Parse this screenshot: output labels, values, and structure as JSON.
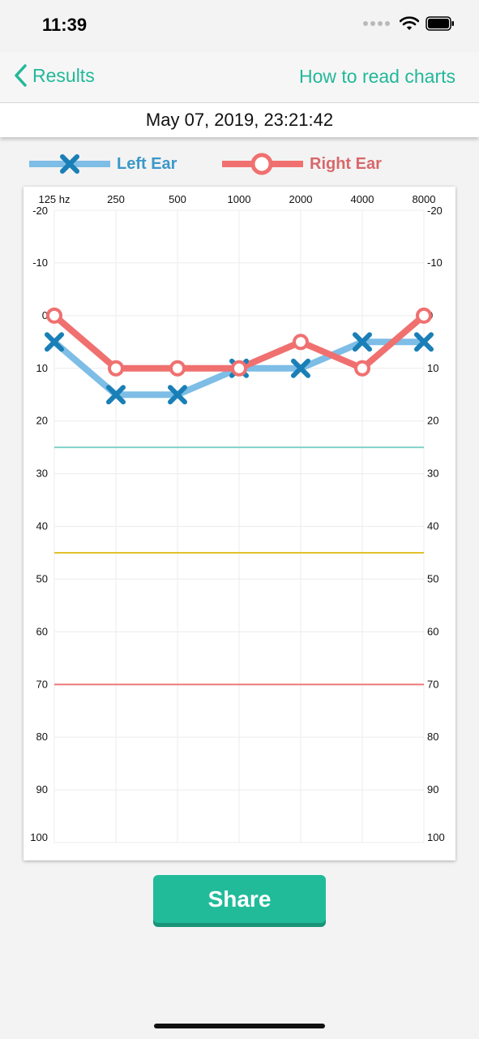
{
  "status": {
    "time": "11:39"
  },
  "nav": {
    "back_label": "Results",
    "help_label": "How to read charts"
  },
  "result": {
    "datetime": "May 07, 2019, 23:21:42"
  },
  "legend": [
    {
      "label": "Left Ear",
      "text_color": "#3a98c9"
    },
    {
      "label": "Right Ear",
      "text_color": "#d9676a"
    }
  ],
  "chart_data": {
    "type": "line",
    "categories": [
      "125 hz",
      "250",
      "500",
      "1000",
      "2000",
      "4000",
      "8000"
    ],
    "y_ticks": [
      -20,
      -10,
      0,
      10,
      20,
      30,
      40,
      50,
      60,
      70,
      80,
      90,
      100
    ],
    "ylim": [
      -20,
      100
    ],
    "y_inverted": true,
    "grid": true,
    "series": [
      {
        "name": "Left Ear",
        "values": [
          5,
          15,
          15,
          10,
          10,
          5,
          5
        ],
        "line_color": "#7dbde6",
        "marker": "x",
        "marker_color": "#1a7fb7"
      },
      {
        "name": "Right Ear",
        "values": [
          0,
          10,
          10,
          10,
          5,
          10,
          0
        ],
        "line_color": "#f07070",
        "marker": "circle",
        "marker_color": "#f07070"
      }
    ],
    "reference_lines": [
      {
        "value": 25,
        "color": "#82d1c6"
      },
      {
        "value": 45,
        "color": "#e2c12a"
      },
      {
        "value": 70,
        "color": "#f07a7a"
      }
    ]
  },
  "share": {
    "label": "Share"
  }
}
